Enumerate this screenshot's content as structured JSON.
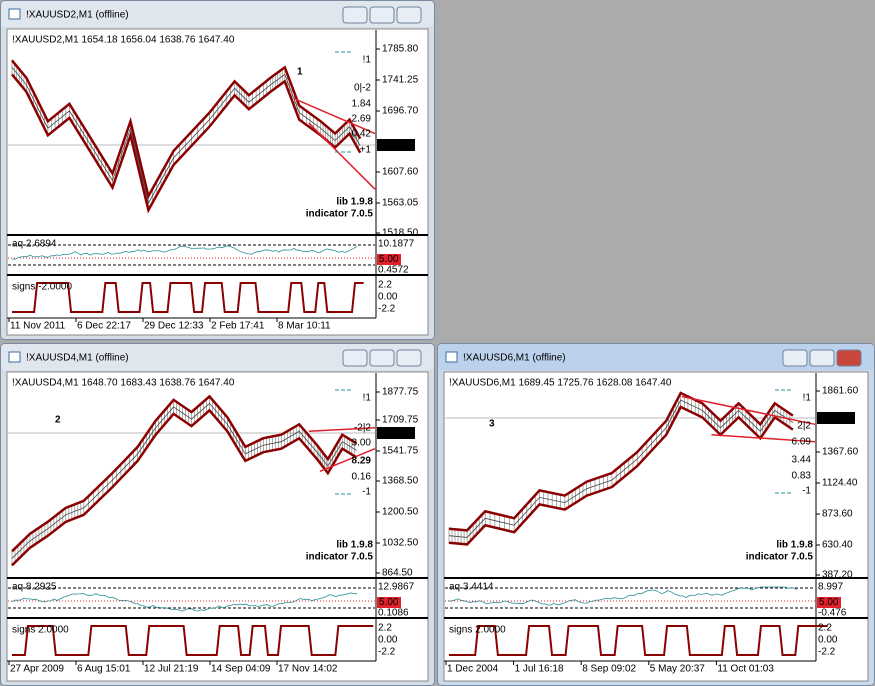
{
  "windows": [
    {
      "title": "!XAUUSD2,M1 (offline)",
      "header": "!XAUUSD2,M1  1654.18 1656.04 1638.76 1647.40",
      "label": "1",
      "price_labels": [
        "1785.80",
        "1741.25",
        "1696.70",
        "1607.60",
        "1563.05",
        "1518.50"
      ],
      "current_price": "1647.40",
      "stats": [
        "!1",
        "0|-2",
        "1.84",
        "2.69",
        "0.42",
        "+1"
      ],
      "lib": "lib 1.9.8",
      "indicator": "indicator 7.0.5",
      "aq": {
        "label": "aq 2.6894",
        "axis": [
          "10.1877",
          "0.4572"
        ],
        "level": "5.00"
      },
      "signs": {
        "label": "signs -2.0000",
        "axis": [
          "2.2",
          "0.00",
          "-2.2"
        ]
      },
      "dates": [
        "11 Nov 2011",
        "6 Dec 22:17",
        "29 Dec 12:33",
        "2 Feb 17:41",
        "8 Mar 10:11"
      ]
    },
    {
      "title": "!XAUUSD4,M1 (offline)",
      "header": "!XAUUSD4,M1  1648.70 1683.43 1638.76 1647.40",
      "label": "2",
      "price_labels": [
        "1877.75",
        "1709.75",
        "1541.75",
        "1368.50",
        "1200.50",
        "1032.50",
        "864.50"
      ],
      "current_price": "1647.40",
      "stats": [
        "!1",
        "-2|2",
        "3.00",
        "8.29",
        "0.16",
        "-1"
      ],
      "lib": "lib 1.9.8",
      "indicator": "indicator 7.0.5",
      "aq": {
        "label": "aq 8.2925",
        "axis": [
          "12.9867",
          "0.1086"
        ],
        "level": "5.00"
      },
      "signs": {
        "label": "signs 2.0000",
        "axis": [
          "2.2",
          "0.00",
          "-2.2"
        ]
      },
      "dates": [
        "27 Apr 2009",
        "6 Aug 15:01",
        "12 Jul 21:19",
        "14 Sep 04:09",
        "17 Nov 14:02"
      ]
    },
    {
      "title": "!XAUUSD6,M1 (offline)",
      "header": "!XAUUSD6,M1  1689.45 1725.76 1628.08 1647.40",
      "label": "3",
      "price_labels": [
        "1861.60",
        "1367.60",
        "1124.40",
        "873.60",
        "630.40",
        "387.20"
      ],
      "current_price": "1647.40",
      "stats": [
        "!1",
        "2|2",
        "6.09",
        "3.44",
        "0.83",
        "-1"
      ],
      "lib": "lib 1.9.8",
      "indicator": "indicator 7.0.5",
      "aq": {
        "label": "aq 3.4414",
        "axis": [
          "8.997",
          "-0.476"
        ],
        "level": "5.00"
      },
      "signs": {
        "label": "signs 2.0000",
        "axis": [
          "2.2",
          "0.00",
          "-2.2"
        ]
      },
      "dates": [
        "1 Dec 2004",
        "1 Jul 16:18",
        "8 Sep 09:02",
        "5 May 20:37",
        "11 Oct 01:03"
      ]
    }
  ]
}
